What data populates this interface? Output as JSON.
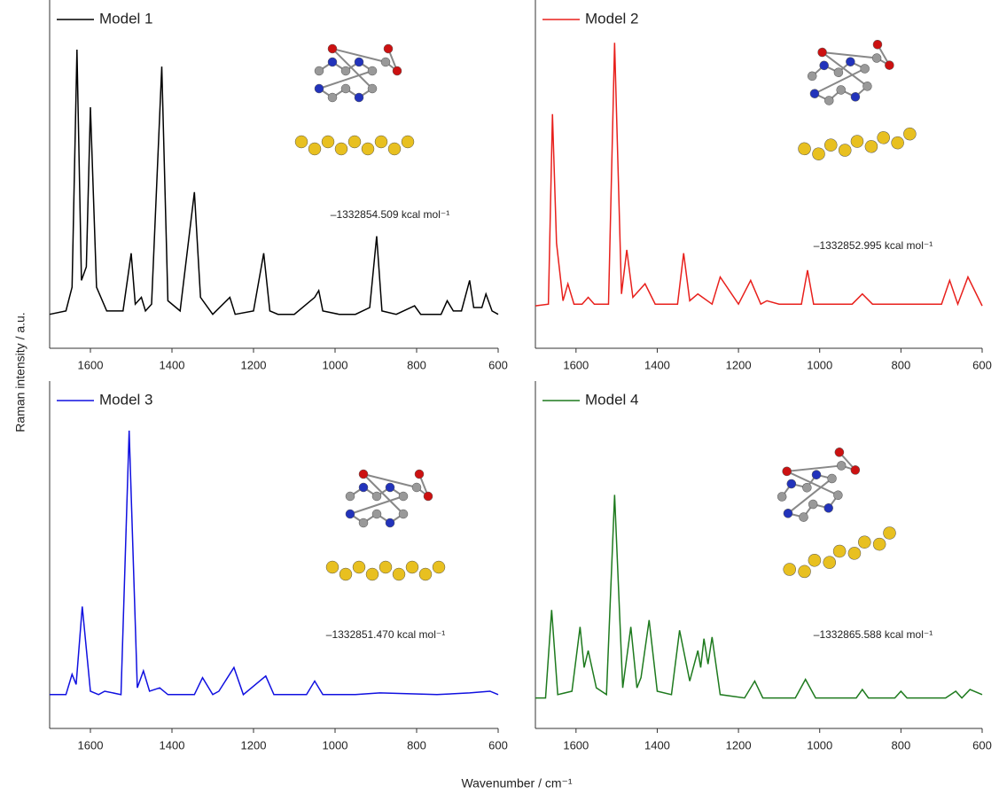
{
  "chart_data": [
    {
      "type": "line",
      "series": [
        {
          "name": "Model 1",
          "color": "#000000",
          "values": [
            10,
            11,
            18,
            88,
            20,
            24,
            71,
            18,
            11,
            11,
            28,
            13,
            15,
            11,
            13,
            83,
            14,
            11,
            46,
            15,
            10,
            15,
            10,
            11,
            28,
            11,
            10,
            10,
            15,
            17,
            11,
            10,
            10,
            12,
            33,
            11,
            10,
            12.5,
            10,
            10,
            14,
            11,
            11,
            20,
            12,
            12,
            16,
            11,
            10
          ]
        }
      ],
      "x": [
        1700,
        1660,
        1645,
        1633,
        1622,
        1610,
        1600,
        1585,
        1560,
        1520,
        1500,
        1490,
        1475,
        1465,
        1450,
        1425,
        1410,
        1380,
        1345,
        1330,
        1300,
        1258,
        1245,
        1200,
        1175,
        1160,
        1140,
        1100,
        1050,
        1040,
        1030,
        990,
        950,
        915,
        898,
        885,
        850,
        805,
        790,
        740,
        725,
        710,
        690,
        670,
        660,
        640,
        630,
        615,
        600
      ],
      "xlim": [
        1700,
        600
      ],
      "xticks": [
        1600,
        1400,
        1200,
        1000,
        800,
        600
      ],
      "ylim": [
        0,
        100
      ],
      "annotation": "–1332854.509 kcal mol⁻¹"
    },
    {
      "type": "line",
      "series": [
        {
          "name": "Model 2",
          "color": "#e8201c",
          "values": [
            12.5,
            13,
            69,
            31,
            14,
            19,
            13,
            13,
            15,
            13,
            13,
            90,
            16,
            29,
            15,
            19,
            13,
            13,
            28,
            14,
            16,
            13,
            21,
            13,
            20,
            13,
            14,
            13,
            13,
            23,
            13,
            13,
            16,
            13,
            13,
            13,
            20,
            13,
            21,
            12.5
          ]
        }
      ],
      "x": [
        1700,
        1668,
        1658,
        1648,
        1632,
        1620,
        1605,
        1585,
        1570,
        1555,
        1520,
        1505,
        1488,
        1475,
        1460,
        1430,
        1405,
        1350,
        1335,
        1320,
        1300,
        1265,
        1245,
        1200,
        1170,
        1145,
        1130,
        1100,
        1045,
        1030,
        1015,
        920,
        895,
        870,
        750,
        700,
        680,
        660,
        635,
        600
      ],
      "xlim": [
        1700,
        600
      ],
      "xticks": [
        1600,
        1400,
        1200,
        1000,
        800,
        600
      ],
      "ylim": [
        0,
        100
      ],
      "annotation": "–1332852.995 kcal mol⁻¹"
    },
    {
      "type": "line",
      "series": [
        {
          "name": "Model 3",
          "color": "#1010e0",
          "values": [
            10,
            10,
            16,
            13,
            36,
            11,
            10,
            11,
            10,
            88,
            12,
            17,
            11,
            12,
            10,
            10,
            15,
            10,
            11,
            18,
            10,
            15.5,
            10,
            10,
            14,
            10,
            10,
            10.5,
            10,
            10.5,
            11,
            10
          ]
        }
      ],
      "x": [
        1700,
        1660,
        1645,
        1635,
        1620,
        1600,
        1580,
        1565,
        1525,
        1505,
        1485,
        1470,
        1455,
        1430,
        1410,
        1345,
        1325,
        1300,
        1285,
        1248,
        1225,
        1170,
        1150,
        1070,
        1050,
        1030,
        950,
        890,
        750,
        670,
        620,
        600
      ],
      "xlim": [
        1700,
        600
      ],
      "xticks": [
        1600,
        1400,
        1200,
        1000,
        800,
        600
      ],
      "ylim": [
        0,
        100
      ],
      "annotation": "–1332851.470 kcal mol⁻¹"
    },
    {
      "type": "line",
      "series": [
        {
          "name": "Model 4",
          "color": "#1e7a1e",
          "values": [
            9,
            9,
            35,
            10,
            11,
            30,
            18,
            23,
            12,
            10,
            69,
            12,
            30,
            12,
            15,
            32,
            11,
            10,
            29,
            14,
            23,
            18,
            26.5,
            19,
            27,
            10,
            9,
            14,
            9,
            9,
            14.5,
            9,
            9,
            11.5,
            9,
            9,
            11,
            9,
            9,
            11,
            9,
            11.5,
            10
          ]
        }
      ],
      "x": [
        1700,
        1675,
        1660,
        1645,
        1610,
        1590,
        1580,
        1570,
        1550,
        1525,
        1505,
        1485,
        1465,
        1450,
        1440,
        1420,
        1400,
        1365,
        1345,
        1320,
        1300,
        1293,
        1285,
        1275,
        1265,
        1245,
        1185,
        1160,
        1140,
        1060,
        1035,
        1010,
        910,
        895,
        880,
        815,
        800,
        785,
        690,
        665,
        650,
        630,
        600
      ],
      "xlim": [
        1700,
        600
      ],
      "xticks": [
        1600,
        1400,
        1200,
        1000,
        800,
        600
      ],
      "ylim": [
        0,
        100
      ],
      "annotation": "–1332865.588 kcal mol⁻¹"
    }
  ],
  "x_label": "Wavenumber / cm⁻¹",
  "y_label": "Raman intensity / a.u."
}
